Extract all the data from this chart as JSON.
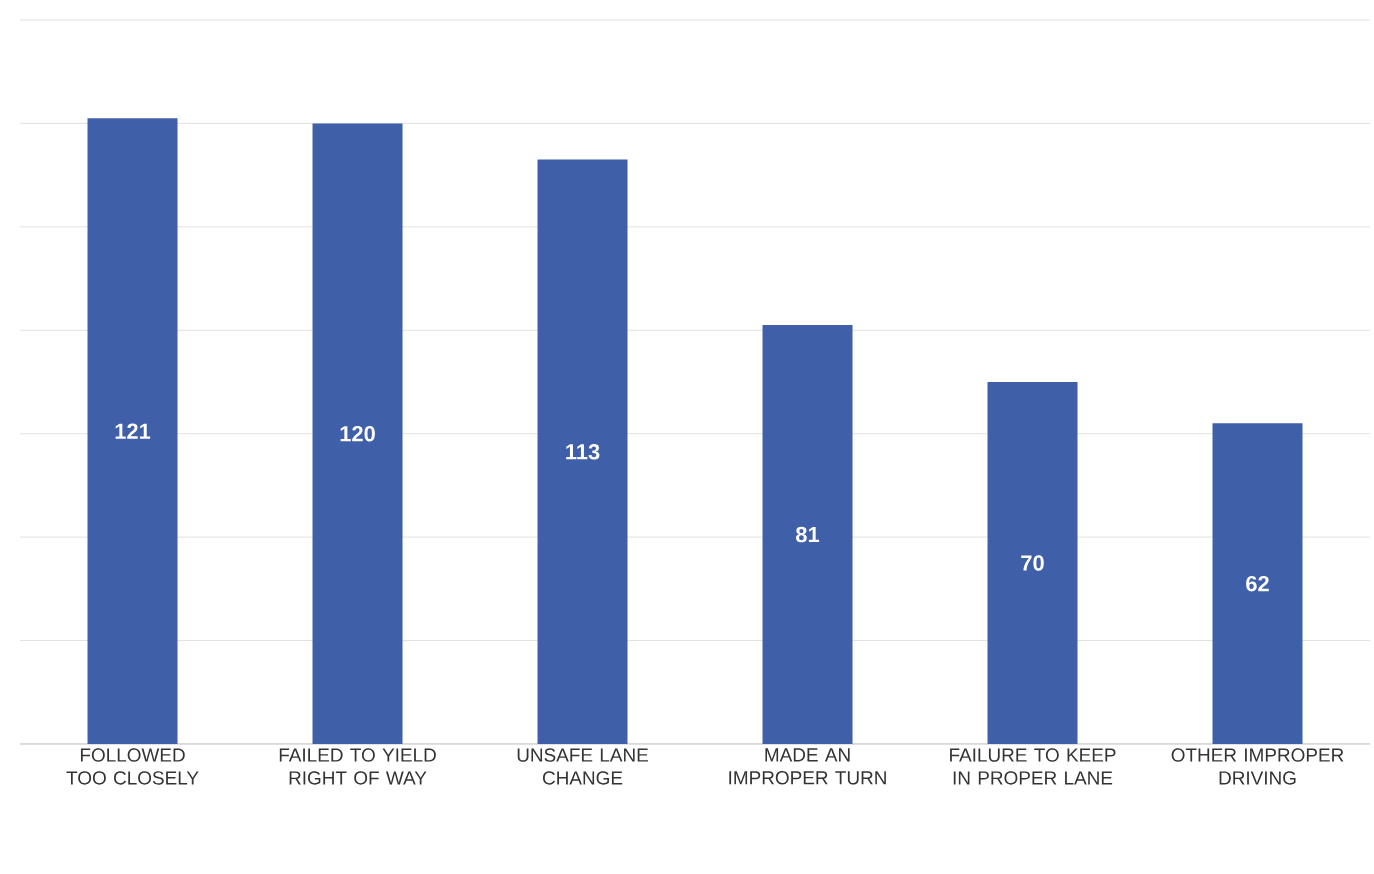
{
  "chart_data": {
    "type": "bar",
    "categories": [
      "FOLLOWED TOO CLOSELY",
      "FAILED TO YIELD RIGHT OF WAY",
      "UNSAFE LANE CHANGE",
      "MADE AN IMPROPER TURN",
      "FAILURE TO KEEP IN PROPER LANE",
      "OTHER IMPROPER DRIVING"
    ],
    "values": [
      121,
      120,
      113,
      81,
      70,
      62
    ],
    "color": "#3f5fa8",
    "ylim": [
      0,
      140
    ],
    "yticks": [
      {
        "value": 0,
        "label": null
      },
      {
        "value": 20,
        "label": null
      },
      {
        "value": 40,
        "label": null
      },
      {
        "value": 60,
        "label": null
      },
      {
        "value": 80,
        "label": null
      },
      {
        "value": 100,
        "label": null
      },
      {
        "value": 120,
        "label": null
      },
      {
        "value": 140,
        "label": null
      }
    ],
    "grid": "y",
    "tick_labels": "x",
    "data_labels": true
  }
}
